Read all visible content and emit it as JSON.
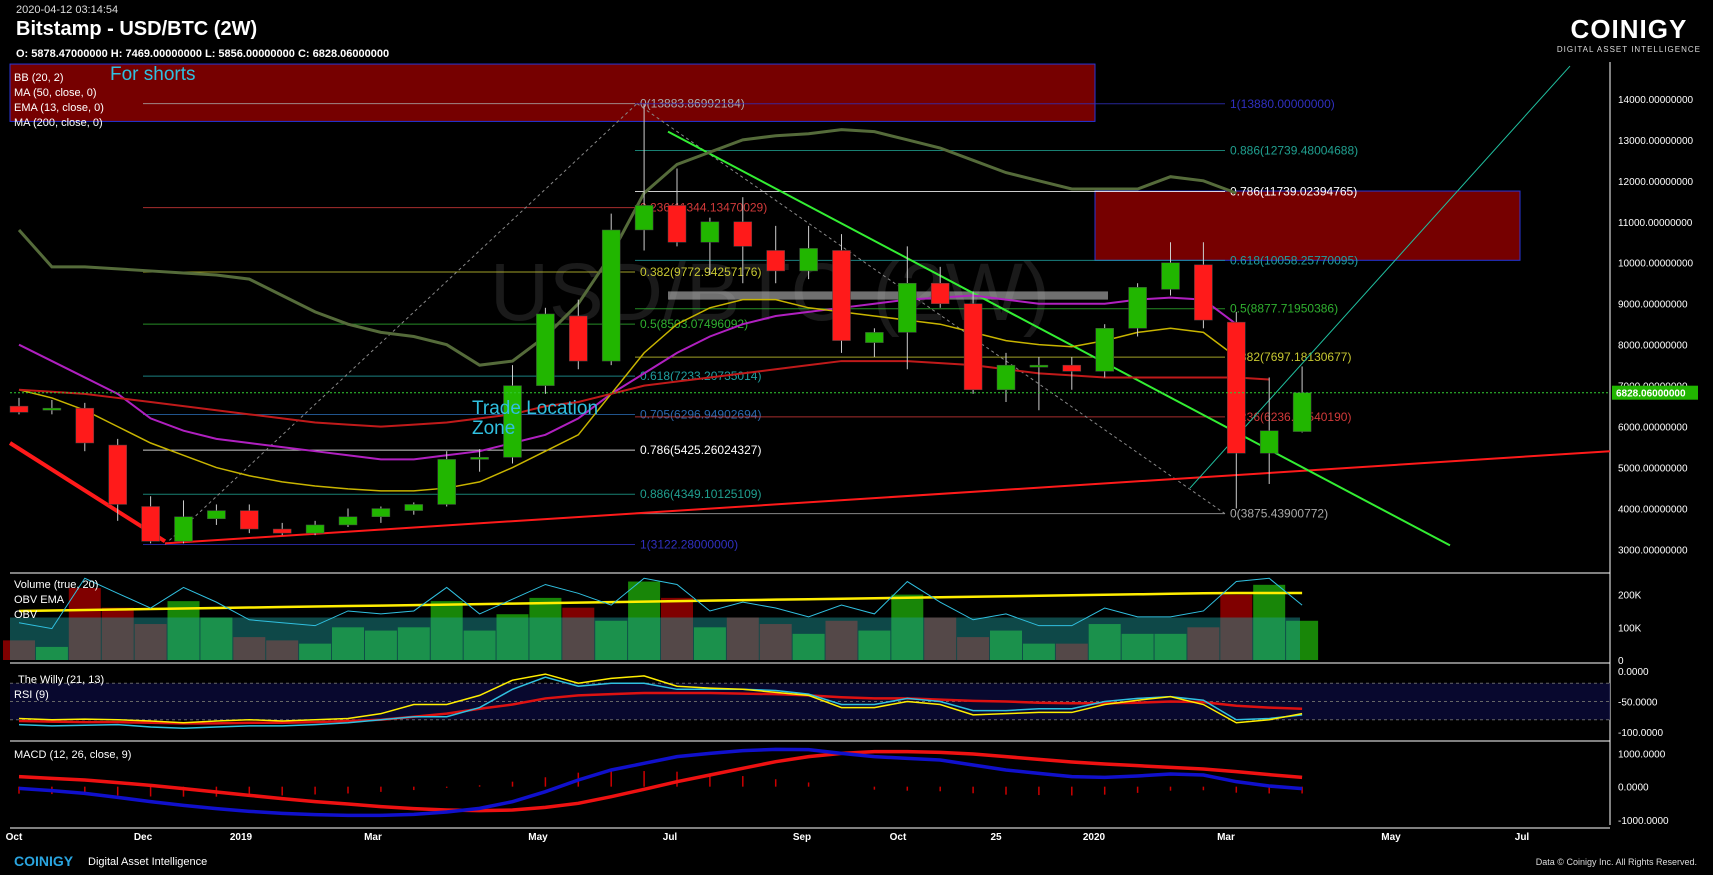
{
  "header": {
    "date": "2020-04-12 03:14:54",
    "title": "Bitstamp - USD/BTC (2W)",
    "ohlc": "O: 5878.47000000 H: 7469.00000000 L: 5856.00000000 C: 6828.06000000"
  },
  "logo": {
    "word": "COINIGY",
    "tag": "DIGITAL ASSET INTELLIGENCE"
  },
  "footer": {
    "brand": "COINIGY",
    "tag": "Digital Asset Intelligence",
    "right": "Data © Coinigy Inc.  All Rights Reserved."
  },
  "colors": {
    "bull": "#21b600",
    "bear": "#ff1a1a",
    "background": "#000000"
  },
  "chart_data": {
    "type": "candlestick",
    "watermark": "USD/BTC (2W)",
    "indicators": [
      "BB (20, 2)",
      "MA (50, close, 0)",
      "EMA (13, close, 0)",
      "MA (200, close, 0)"
    ],
    "annotations": [
      "For shorts",
      "Trade Location Zone"
    ],
    "x_ticks": [
      "Oct",
      "Dec",
      "2019",
      "Mar",
      "May",
      "Jul",
      "Sep",
      "Oct",
      "25",
      "2020",
      "Mar",
      "May",
      "Jul"
    ],
    "y_ticks": [
      "14000.00000000",
      "13000.00000000",
      "12000.00000000",
      "11000.00000000",
      "10000.00000000",
      "9000.00000000",
      "8000.00000000",
      "7000.00000000",
      "6000.00000000",
      "5000.00000000",
      "4000.00000000",
      "3000.00000000"
    ],
    "ylim": [
      2500,
      14900
    ],
    "last_price_label": "6828.06000000",
    "last_price": 6828.06,
    "candles": [
      {
        "o": 6500,
        "h": 6700,
        "l": 6300,
        "c": 6350
      },
      {
        "o": 6420,
        "h": 6650,
        "l": 6300,
        "c": 6450
      },
      {
        "o": 6450,
        "h": 6580,
        "l": 5400,
        "c": 5600
      },
      {
        "o": 5550,
        "h": 5700,
        "l": 3700,
        "c": 4100
      },
      {
        "o": 4050,
        "h": 4300,
        "l": 3150,
        "c": 3200
      },
      {
        "o": 3200,
        "h": 4200,
        "l": 3150,
        "c": 3800
      },
      {
        "o": 3750,
        "h": 4100,
        "l": 3600,
        "c": 3950
      },
      {
        "o": 3950,
        "h": 4100,
        "l": 3400,
        "c": 3500
      },
      {
        "o": 3500,
        "h": 3650,
        "l": 3350,
        "c": 3400
      },
      {
        "o": 3400,
        "h": 3700,
        "l": 3350,
        "c": 3600
      },
      {
        "o": 3600,
        "h": 4000,
        "l": 3550,
        "c": 3800
      },
      {
        "o": 3800,
        "h": 4050,
        "l": 3650,
        "c": 4000
      },
      {
        "o": 3950,
        "h": 4150,
        "l": 3850,
        "c": 4100
      },
      {
        "o": 4100,
        "h": 5400,
        "l": 4050,
        "c": 5200
      },
      {
        "o": 5200,
        "h": 5450,
        "l": 4900,
        "c": 5250
      },
      {
        "o": 5250,
        "h": 7500,
        "l": 5100,
        "c": 7000
      },
      {
        "o": 7000,
        "h": 8900,
        "l": 6800,
        "c": 8750
      },
      {
        "o": 8700,
        "h": 9100,
        "l": 7400,
        "c": 7600
      },
      {
        "o": 7600,
        "h": 11200,
        "l": 7500,
        "c": 10800
      },
      {
        "o": 10800,
        "h": 13880,
        "l": 10300,
        "c": 11400
      },
      {
        "o": 11400,
        "h": 12300,
        "l": 10400,
        "c": 10500
      },
      {
        "o": 10500,
        "h": 11100,
        "l": 9700,
        "c": 11000
      },
      {
        "o": 11000,
        "h": 11600,
        "l": 9500,
        "c": 10400
      },
      {
        "o": 10300,
        "h": 10900,
        "l": 9500,
        "c": 9800
      },
      {
        "o": 9800,
        "h": 10900,
        "l": 9600,
        "c": 10350
      },
      {
        "o": 10300,
        "h": 10700,
        "l": 7800,
        "c": 8100
      },
      {
        "o": 8050,
        "h": 8400,
        "l": 7700,
        "c": 8300
      },
      {
        "o": 8300,
        "h": 10400,
        "l": 7400,
        "c": 9500
      },
      {
        "o": 9500,
        "h": 9900,
        "l": 8900,
        "c": 9000
      },
      {
        "o": 9000,
        "h": 9300,
        "l": 6800,
        "c": 6900
      },
      {
        "o": 6900,
        "h": 7800,
        "l": 6600,
        "c": 7500
      },
      {
        "o": 7500,
        "h": 7700,
        "l": 6400,
        "c": 7500
      },
      {
        "o": 7500,
        "h": 7700,
        "l": 6900,
        "c": 7350
      },
      {
        "o": 7350,
        "h": 8500,
        "l": 7200,
        "c": 8400
      },
      {
        "o": 8400,
        "h": 9500,
        "l": 8200,
        "c": 9400
      },
      {
        "o": 9350,
        "h": 10500,
        "l": 9200,
        "c": 10000
      },
      {
        "o": 9950,
        "h": 10500,
        "l": 8400,
        "c": 8600
      },
      {
        "o": 8550,
        "h": 8800,
        "l": 4000,
        "c": 5350
      },
      {
        "o": 5350,
        "h": 7200,
        "l": 4600,
        "c": 5900
      },
      {
        "o": 5878.47,
        "h": 7469,
        "l": 5856,
        "c": 6828.06
      }
    ],
    "fib_left": [
      {
        "label": "0(13883.86992184)",
        "value": 13883.86992184,
        "color": "#aaaaaa"
      },
      {
        "label": "0.236(11344.13470029)",
        "value": 11344.13470029,
        "color": "#d23a3a"
      },
      {
        "label": "0.382(9772.94257176)",
        "value": 9772.94257176,
        "color": "#c8c832"
      },
      {
        "label": "0.5(8503.07496092)",
        "value": 8503.07496092,
        "color": "#30b030"
      },
      {
        "label": "0.618(7233.20735014)",
        "value": 7233.20735014,
        "color": "#20a0a0"
      },
      {
        "label": "0.705(6296.94902694)",
        "value": 6296.94902694,
        "color": "#2a6ab0"
      },
      {
        "label": "0.786(5425.26024327)",
        "value": 5425.26024327,
        "color": "#ffffff"
      },
      {
        "label": "0.886(4349.10125109)",
        "value": 4349.10125109,
        "color": "#20a090"
      },
      {
        "label": "1(3122.28000000)",
        "value": 3122.28,
        "color": "#3030c0"
      }
    ],
    "fib_right": [
      {
        "label": "1(13880.00000000)",
        "value": 13880,
        "color": "#3030c0"
      },
      {
        "label": "0.886(12739.48004688)",
        "value": 12739.48004688,
        "color": "#20a090"
      },
      {
        "label": "0.786(11739.02394765)",
        "value": 11739.02394765,
        "color": "#ffffff"
      },
      {
        "label": "0.618(10058.25770095)",
        "value": 10058.25770095,
        "color": "#20a0a0"
      },
      {
        "label": "0.5(8877.71950386)",
        "value": 8877.71950386,
        "color": "#30b030"
      },
      {
        "label": "0.382(7697.18130677)",
        "value": 7697.18130677,
        "color": "#c8c832"
      },
      {
        "label": "0.236(6236.51540190)",
        "value": 6236.5154019,
        "color": "#d23a3a"
      },
      {
        "label": "0(3875.43900772)",
        "value": 3875.43900772,
        "color": "#aaaaaa"
      }
    ],
    "volume": {
      "title": "Volume (true, 20)",
      "obv_ema_label": "OBV EMA",
      "obv_label": "OBV",
      "y_ticks": [
        "200K",
        "100K",
        "0"
      ],
      "ylim": [
        0,
        260000
      ],
      "values": [
        60000,
        40000,
        220000,
        160000,
        110000,
        180000,
        130000,
        70000,
        60000,
        50000,
        100000,
        90000,
        100000,
        180000,
        90000,
        140000,
        190000,
        160000,
        120000,
        240000,
        190000,
        100000,
        130000,
        110000,
        80000,
        120000,
        90000,
        200000,
        130000,
        70000,
        90000,
        50000,
        50000,
        110000,
        80000,
        80000,
        100000,
        200000,
        230000,
        120000
      ]
    },
    "willy": {
      "title": "The Willy (21, 13)",
      "rsi_label": "RSI (9)",
      "y_ticks": [
        "0.0000",
        "-50.0000",
        "-100.0000"
      ],
      "ylim": [
        -110,
        5
      ],
      "willy": [
        -78,
        -80,
        -79,
        -80,
        -82,
        -85,
        -82,
        -80,
        -82,
        -80,
        -78,
        -70,
        -55,
        -55,
        -40,
        -15,
        -5,
        -20,
        -12,
        -8,
        -25,
        -28,
        -30,
        -35,
        -40,
        -60,
        -60,
        -50,
        -55,
        -72,
        -70,
        -68,
        -68,
        -55,
        -48,
        -42,
        -55,
        -85,
        -80,
        -70
      ],
      "rsi": [
        -88,
        -90,
        -89,
        -88,
        -92,
        -94,
        -92,
        -90,
        -90,
        -88,
        -85,
        -80,
        -75,
        -75,
        -60,
        -30,
        -10,
        -25,
        -20,
        -20,
        -30,
        -30,
        -30,
        -32,
        -38,
        -55,
        -55,
        -45,
        -50,
        -65,
        -65,
        -62,
        -62,
        -50,
        -45,
        -42,
        -48,
        -80,
        -78,
        -72
      ],
      "signal": [
        -82,
        -83,
        -84,
        -84,
        -85,
        -86,
        -86,
        -85,
        -85,
        -84,
        -82,
        -80,
        -75,
        -70,
        -62,
        -55,
        -45,
        -40,
        -38,
        -36,
        -36,
        -36,
        -37,
        -38,
        -40,
        -43,
        -45,
        -45,
        -47,
        -49,
        -50,
        -52,
        -53,
        -53,
        -52,
        -50,
        -51,
        -57,
        -60,
        -62
      ]
    },
    "macd": {
      "title": "MACD (12, 26, close, 9)",
      "y_ticks": [
        "1000.0000",
        "0.0000",
        "-1000.0000"
      ],
      "ylim": [
        -1150,
        1250
      ],
      "macd": [
        -50,
        -120,
        -200,
        -320,
        -450,
        -560,
        -660,
        -740,
        -800,
        -840,
        -860,
        -860,
        -830,
        -760,
        -650,
        -450,
        -150,
        200,
        500,
        700,
        900,
        1000,
        1080,
        1120,
        1110,
        1000,
        900,
        850,
        800,
        650,
        500,
        400,
        300,
        280,
        320,
        380,
        350,
        150,
        20,
        -60
      ],
      "signal": [
        300,
        250,
        200,
        120,
        40,
        -60,
        -160,
        -260,
        -360,
        -450,
        -520,
        -600,
        -660,
        -700,
        -720,
        -700,
        -620,
        -500,
        -300,
        -80,
        150,
        350,
        550,
        750,
        900,
        1000,
        1050,
        1050,
        1030,
        980,
        900,
        820,
        740,
        680,
        630,
        580,
        530,
        450,
        360,
        280
      ]
    }
  }
}
